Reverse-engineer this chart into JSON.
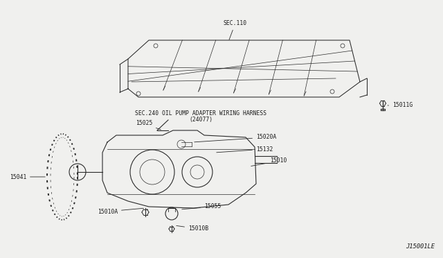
{
  "bg_color": "#f0f0ee",
  "diagram_id": "J15001LE",
  "labels": {
    "sec110": "SEC.110",
    "sec240": "SEC.240 OIL PUMP ADAPTER WIRING HARNESS",
    "sec240b": "(24077)",
    "p15011g": "15011G",
    "p15025": "15025",
    "p15020a": "15020A",
    "p15132": "15132",
    "p15010": "15010",
    "p15041": "15041",
    "p15010a": "15010A",
    "p15055": "15055",
    "p15010b": "15010B"
  },
  "font_size": 5.8,
  "line_color": "#2a2a2a",
  "text_color": "#1a1a1a",
  "white": "#ffffff"
}
